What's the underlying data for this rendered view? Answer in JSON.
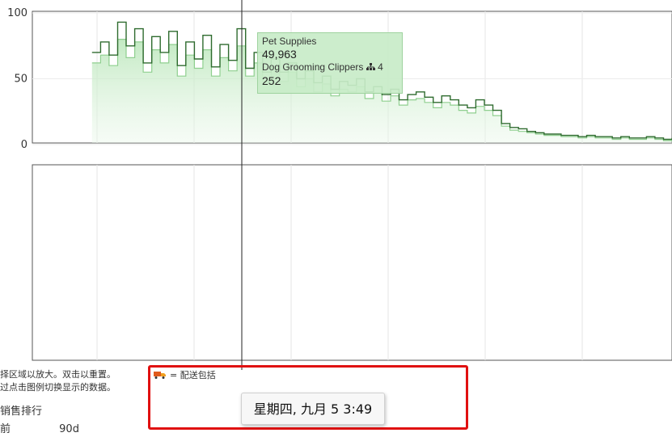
{
  "chart_data": [
    {
      "type": "line",
      "ylim": [
        0,
        100
      ],
      "yticks": [
        0,
        50,
        100
      ],
      "grid": true,
      "series": [
        {
          "color": "#2e6b2e",
          "values": [
            null,
            null,
            null,
            null,
            null,
            null,
            null,
            70,
            78,
            68,
            93,
            75,
            88,
            62,
            82,
            70,
            86,
            60,
            78,
            65,
            83,
            59,
            76,
            64,
            88,
            58,
            70,
            55,
            65,
            55,
            62,
            50,
            56,
            47,
            52,
            42,
            48,
            45,
            50,
            40,
            44,
            38,
            42,
            34,
            38,
            40,
            36,
            32,
            37,
            34,
            30,
            28,
            34,
            30,
            26,
            16,
            13,
            12,
            10,
            9,
            8,
            8,
            7,
            7,
            6,
            7,
            6,
            6,
            5,
            6,
            5,
            5,
            6,
            5,
            4,
            5
          ]
        },
        {
          "color": "#8fcf8f",
          "values": [
            null,
            null,
            null,
            null,
            null,
            null,
            null,
            62,
            68,
            60,
            80,
            66,
            78,
            55,
            72,
            62,
            76,
            52,
            68,
            58,
            72,
            52,
            66,
            56,
            75,
            52,
            62,
            48,
            58,
            48,
            55,
            44,
            50,
            40,
            46,
            37,
            42,
            40,
            44,
            35,
            39,
            33,
            37,
            30,
            34,
            35,
            32,
            28,
            32,
            30,
            26,
            24,
            29,
            26,
            22,
            14,
            11,
            10,
            9,
            8,
            7,
            7,
            6,
            6,
            5,
            6,
            5,
            5,
            4,
            5,
            4,
            4,
            5,
            4,
            3,
            4
          ]
        }
      ],
      "tooltip": {
        "category": "Pet Supplies",
        "rank": "49,963",
        "product": "Dog Grooming Clippers",
        "product_rank": "252",
        "icon": "hierarchy-icon",
        "icon_count": "4"
      }
    },
    {
      "type": "line",
      "series": []
    }
  ],
  "help": {
    "line1": "择区域以放大。双击以重置。",
    "line2": "过点击图例切换显示的数据。"
  },
  "legend_note": {
    "icon": "truck-icon",
    "text": "= 配送包括"
  },
  "section": {
    "title": "销售排行"
  },
  "range": {
    "before": "前",
    "days": "90d"
  },
  "date_tooltip": "星期四, 九月 5 3:49",
  "colors": {
    "dark_series": "#2e6b2e",
    "light_series": "#8fcf8f",
    "highlight": "#e01010"
  }
}
